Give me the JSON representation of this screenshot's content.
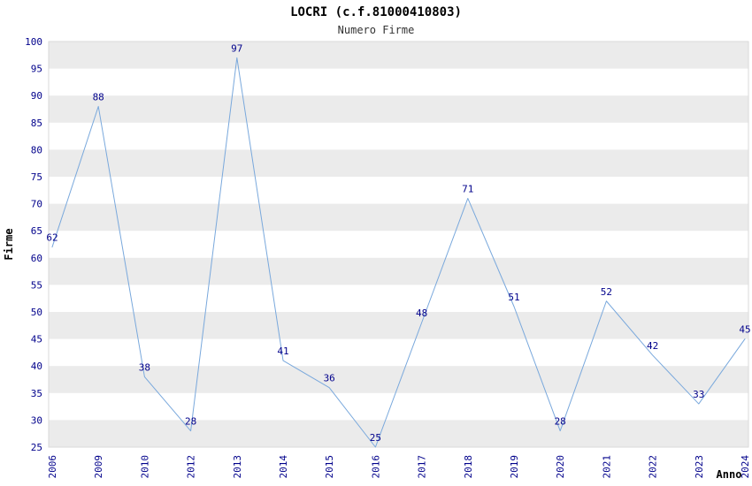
{
  "header": {
    "title": "LOCRI (c.f.81000410803)",
    "subtitle": "Numero Firme"
  },
  "chart_data": {
    "type": "line",
    "title": "LOCRI (c.f.81000410803)",
    "subtitle": "Numero Firme",
    "xlabel": "Anno",
    "ylabel": "Firme",
    "categories": [
      "2006",
      "2009",
      "2010",
      "2012",
      "2013",
      "2014",
      "2015",
      "2016",
      "2017",
      "2018",
      "2019",
      "2020",
      "2021",
      "2022",
      "2023",
      "2024"
    ],
    "values": [
      62,
      88,
      38,
      28,
      97,
      41,
      36,
      25,
      48,
      71,
      51,
      28,
      52,
      42,
      33,
      45
    ],
    "ylim": [
      25,
      100
    ],
    "ytick_step": 5,
    "grid": "alternating-horizontal-bands",
    "legend": "none",
    "data_labels": true,
    "colors": {
      "line": "#79a8dc",
      "point_label": "#00008b",
      "axis_tick_text": "#00008b",
      "axis_title_text": "#000000",
      "band": "#ebebeb",
      "plot_border": "#d9d9d9",
      "background": "#ffffff"
    }
  }
}
